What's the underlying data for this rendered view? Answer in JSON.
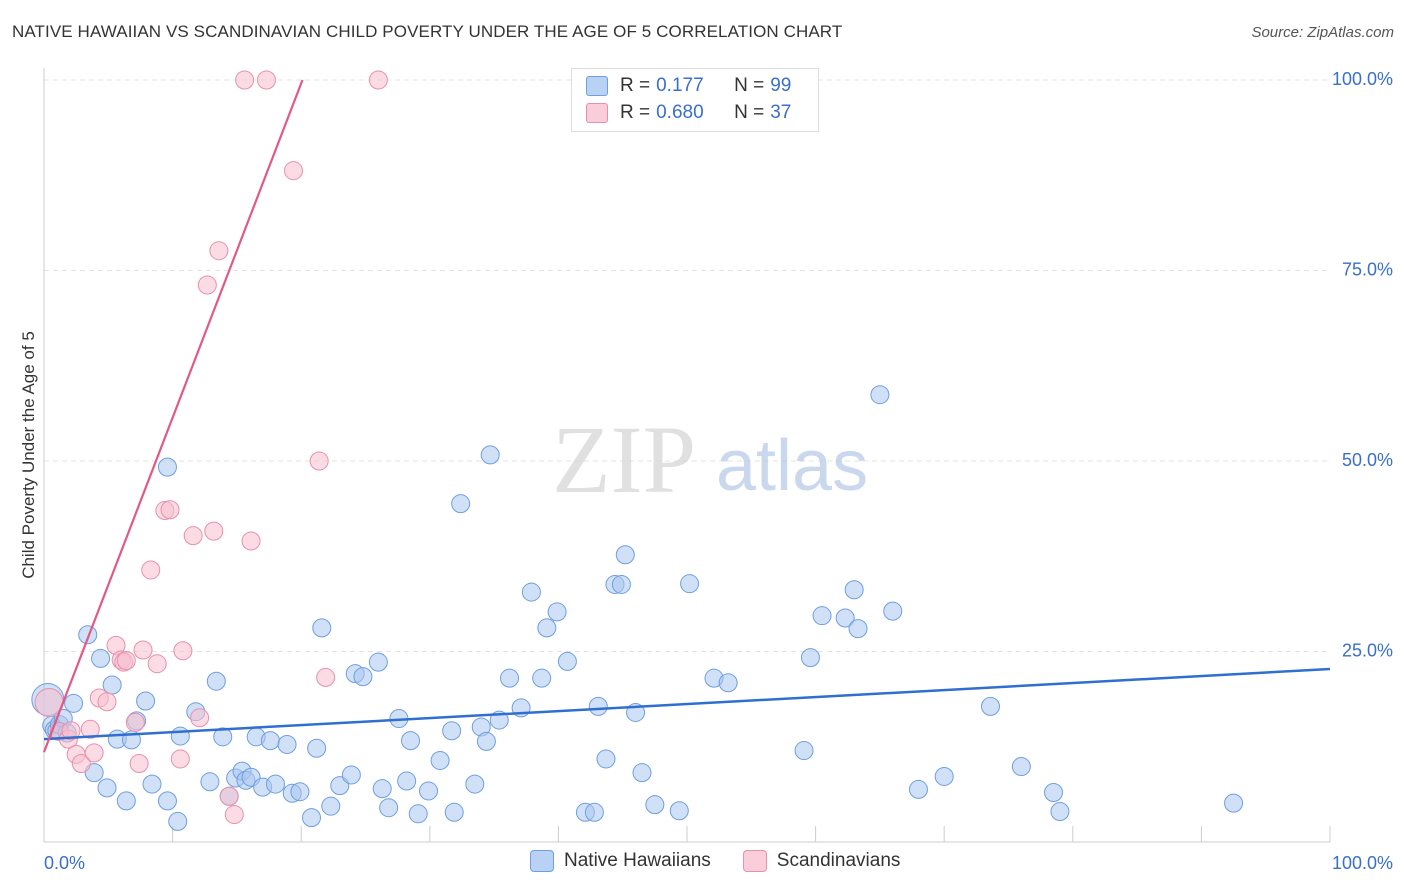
{
  "title": "NATIVE HAWAIIAN VS SCANDINAVIAN CHILD POVERTY UNDER THE AGE OF 5 CORRELATION CHART",
  "source": "Source: ZipAtlas.com",
  "watermark": {
    "zip": "ZIP",
    "atlas": "atlas"
  },
  "legend": {
    "rows": [
      {
        "r_label": "R = ",
        "r_value": "0.177",
        "n_label": "N = ",
        "n_value": "99"
      },
      {
        "r_label": "R = ",
        "r_value": "0.680",
        "n_label": "N = ",
        "n_value": "37"
      }
    ]
  },
  "colors": {
    "blue_fill": "#a9c6ee",
    "blue_stroke": "#6e9fe0",
    "blue_line": "#2f6fd0",
    "pink_fill": "#f7bfd0",
    "pink_stroke": "#e98fac",
    "pink_line": "#e05a86",
    "axis_text": "#3a6fc7",
    "grid": "#e3e3e3"
  },
  "chart_data": {
    "type": "scatter",
    "title": "NATIVE HAWAIIAN VS SCANDINAVIAN CHILD POVERTY UNDER THE AGE OF 5 CORRELATION CHART",
    "xlabel": "",
    "ylabel": "Child Poverty Under the Age of 5",
    "xlim": [
      0,
      100
    ],
    "ylim": [
      0,
      100
    ],
    "x_tick_labels": [
      "0.0%",
      "100.0%"
    ],
    "y_ticks": [
      25,
      50,
      75,
      100
    ],
    "y_tick_labels": [
      "25.0%",
      "50.0%",
      "75.0%",
      "100.0%"
    ],
    "series": [
      {
        "name": "Native Hawaiians",
        "color": "#a9c6ee",
        "points": [
          [
            0.3,
            18.7
          ],
          [
            0.6,
            15.3
          ],
          [
            0.8,
            14.7
          ],
          [
            1.0,
            14.6
          ],
          [
            1.2,
            15.4
          ],
          [
            1.5,
            16.2
          ],
          [
            1.8,
            14.3
          ],
          [
            2.3,
            18.2
          ],
          [
            3.4,
            27.2
          ],
          [
            3.9,
            9.1
          ],
          [
            4.4,
            24.1
          ],
          [
            4.9,
            7.1
          ],
          [
            5.3,
            20.6
          ],
          [
            5.7,
            13.5
          ],
          [
            6.4,
            5.4
          ],
          [
            6.8,
            13.4
          ],
          [
            7.2,
            15.9
          ],
          [
            7.9,
            18.5
          ],
          [
            8.4,
            7.6
          ],
          [
            9.6,
            5.4
          ],
          [
            9.6,
            49.2
          ],
          [
            10.4,
            2.7
          ],
          [
            10.6,
            13.9
          ],
          [
            11.8,
            17.1
          ],
          [
            12.9,
            7.9
          ],
          [
            13.4,
            21.1
          ],
          [
            13.9,
            13.8
          ],
          [
            14.4,
            6.0
          ],
          [
            14.9,
            8.4
          ],
          [
            15.4,
            9.3
          ],
          [
            15.7,
            8.1
          ],
          [
            16.1,
            8.5
          ],
          [
            16.5,
            13.8
          ],
          [
            17.0,
            7.2
          ],
          [
            17.6,
            13.3
          ],
          [
            18.0,
            7.6
          ],
          [
            18.9,
            12.8
          ],
          [
            19.3,
            6.4
          ],
          [
            19.9,
            6.6
          ],
          [
            20.8,
            3.2
          ],
          [
            21.2,
            12.3
          ],
          [
            21.6,
            28.1
          ],
          [
            22.3,
            4.7
          ],
          [
            23.0,
            7.4
          ],
          [
            23.9,
            8.8
          ],
          [
            24.2,
            22.1
          ],
          [
            24.8,
            21.7
          ],
          [
            26.0,
            23.6
          ],
          [
            26.3,
            7.0
          ],
          [
            26.8,
            4.5
          ],
          [
            27.6,
            16.2
          ],
          [
            28.2,
            8.0
          ],
          [
            28.5,
            13.3
          ],
          [
            29.1,
            3.7
          ],
          [
            29.9,
            6.7
          ],
          [
            30.8,
            10.7
          ],
          [
            31.7,
            14.6
          ],
          [
            31.9,
            3.9
          ],
          [
            32.4,
            44.4
          ],
          [
            33.5,
            7.6
          ],
          [
            34.0,
            15.1
          ],
          [
            34.4,
            13.2
          ],
          [
            34.7,
            50.8
          ],
          [
            35.4,
            16.0
          ],
          [
            36.2,
            21.5
          ],
          [
            37.1,
            17.6
          ],
          [
            37.9,
            32.8
          ],
          [
            38.7,
            21.5
          ],
          [
            39.1,
            28.1
          ],
          [
            39.9,
            30.2
          ],
          [
            40.7,
            23.7
          ],
          [
            42.1,
            3.9
          ],
          [
            42.8,
            3.9
          ],
          [
            43.1,
            17.8
          ],
          [
            43.7,
            10.9
          ],
          [
            44.4,
            33.8
          ],
          [
            44.9,
            33.8
          ],
          [
            45.2,
            37.7
          ],
          [
            46.0,
            17.0
          ],
          [
            46.5,
            9.1
          ],
          [
            47.5,
            4.9
          ],
          [
            49.4,
            4.1
          ],
          [
            50.2,
            33.9
          ],
          [
            52.1,
            21.5
          ],
          [
            53.2,
            20.9
          ],
          [
            59.1,
            12.0
          ],
          [
            59.6,
            24.2
          ],
          [
            60.5,
            29.7
          ],
          [
            62.3,
            29.4
          ],
          [
            63.0,
            33.1
          ],
          [
            63.3,
            28.0
          ],
          [
            65.0,
            58.7
          ],
          [
            66.0,
            30.3
          ],
          [
            68.0,
            6.9
          ],
          [
            70.0,
            8.6
          ],
          [
            73.6,
            17.8
          ],
          [
            76.0,
            9.9
          ],
          [
            78.5,
            6.5
          ],
          [
            79.0,
            4.0
          ],
          [
            92.5,
            5.1
          ]
        ]
      },
      {
        "name": "Scandinavians",
        "color": "#f7bfd0",
        "points": [
          [
            0.4,
            18.3
          ],
          [
            1.2,
            14.5
          ],
          [
            1.9,
            13.5
          ],
          [
            2.1,
            14.6
          ],
          [
            2.5,
            11.5
          ],
          [
            2.9,
            10.3
          ],
          [
            3.6,
            14.8
          ],
          [
            3.9,
            11.7
          ],
          [
            4.3,
            18.9
          ],
          [
            4.9,
            18.4
          ],
          [
            5.6,
            25.8
          ],
          [
            6.0,
            23.9
          ],
          [
            6.2,
            23.6
          ],
          [
            6.4,
            23.8
          ],
          [
            7.1,
            15.7
          ],
          [
            7.4,
            10.3
          ],
          [
            7.7,
            25.2
          ],
          [
            8.3,
            35.7
          ],
          [
            8.8,
            23.4
          ],
          [
            9.4,
            43.5
          ],
          [
            9.8,
            43.6
          ],
          [
            10.6,
            10.9
          ],
          [
            10.8,
            25.1
          ],
          [
            11.6,
            40.2
          ],
          [
            12.1,
            16.3
          ],
          [
            12.7,
            73.1
          ],
          [
            13.2,
            40.8
          ],
          [
            13.6,
            77.6
          ],
          [
            14.4,
            6.0
          ],
          [
            14.8,
            3.6
          ],
          [
            16.1,
            39.5
          ],
          [
            15.6,
            100.0
          ],
          [
            17.3,
            100.0
          ],
          [
            19.4,
            88.1
          ],
          [
            21.4,
            50.0
          ],
          [
            21.9,
            21.6
          ],
          [
            26.0,
            100.0
          ]
        ]
      }
    ],
    "trend_lines": [
      {
        "series": "Native Hawaiians",
        "x": [
          0,
          100
        ],
        "y": [
          13.5,
          22.7
        ]
      },
      {
        "series": "Scandinavians",
        "x": [
          0,
          20.1
        ],
        "y": [
          11.8,
          100.0
        ]
      }
    ]
  },
  "bottom_legend": [
    "Native Hawaiians",
    "Scandinavians"
  ]
}
